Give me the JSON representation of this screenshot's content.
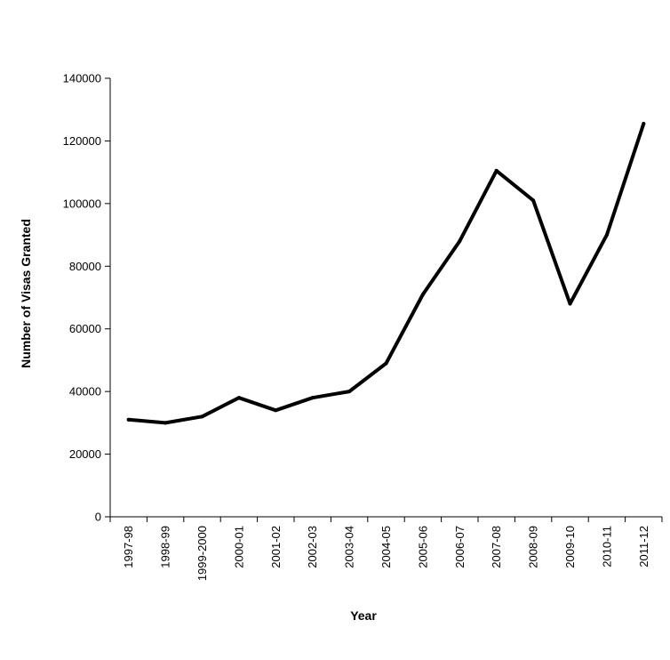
{
  "chart_data": {
    "type": "line",
    "xlabel": "Year",
    "ylabel": "Number of Visas Granted",
    "ylim": [
      0,
      140000
    ],
    "yticks": [
      0,
      20000,
      40000,
      60000,
      80000,
      100000,
      120000,
      140000
    ],
    "ytick_labels": [
      "0",
      "20000",
      "40000",
      "60000",
      "80000",
      "100000",
      "120000",
      "140000"
    ],
    "categories": [
      "1997-98",
      "1998-99",
      "1999-2000",
      "2000-01",
      "2001-02",
      "2002-03",
      "2003-04",
      "2004-05",
      "2005-06",
      "2006-07",
      "2007-08",
      "2008-09",
      "2009-10",
      "2010-11",
      "2011-12"
    ],
    "series": [
      {
        "values": [
          31000,
          30000,
          32000,
          38000,
          34000,
          38000,
          40000,
          49000,
          71000,
          88000,
          110500,
          101000,
          68000,
          90000,
          125500
        ],
        "color": "#000000"
      }
    ],
    "grid": false,
    "legend": "none"
  }
}
